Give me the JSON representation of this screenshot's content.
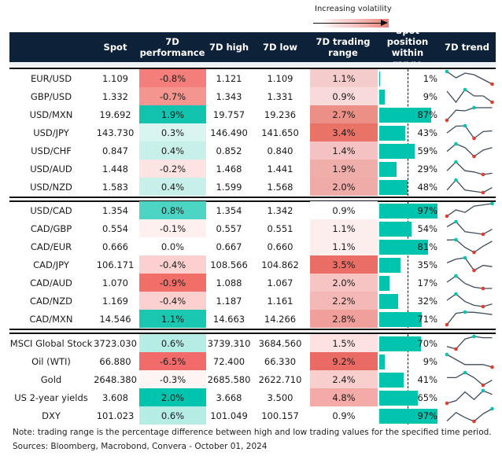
{
  "legend": {
    "label": "Increasing volatility"
  },
  "columns": [
    "",
    "Spot",
    "7D performance",
    "7D high",
    "7D low",
    "7D trading range",
    "Spot position within range",
    "7D trend"
  ],
  "colors": {
    "header": "#0d2138",
    "teal": "#00c4ae",
    "sparkline": "#3d4b5a",
    "high_marker": "#00c4ae",
    "low_marker": "#e03c31"
  },
  "chart_data": {
    "type": "table",
    "groups": [
      [
        {
          "name": "EUR/USD",
          "spot": "1.109",
          "perf": "-0.8%",
          "perf_color": "#f47f7a",
          "high": "1.121",
          "low": "1.109",
          "range": "1.1%",
          "range_color": "#f4cccc",
          "pos": 1,
          "pos_label": "1%",
          "trend": [
            10,
            6,
            9,
            8,
            5,
            2
          ]
        },
        {
          "name": "GBP/USD",
          "spot": "1.332",
          "perf": "-0.7%",
          "perf_color": "#f59590",
          "high": "1.343",
          "low": "1.331",
          "range": "0.9%",
          "range_color": "#f8dada",
          "pos": 9,
          "pos_label": "9%",
          "trend": [
            9,
            2,
            10,
            6,
            6,
            2
          ]
        },
        {
          "name": "USD/MXN",
          "spot": "19.692",
          "perf": "1.9%",
          "perf_color": "#12c4ae",
          "high": "19.757",
          "low": "19.236",
          "range": "2.7%",
          "range_color": "#ec8f87",
          "pos": 87,
          "pos_label": "87%",
          "trend": [
            0,
            8,
            7.5,
            10,
            10,
            10
          ]
        },
        {
          "name": "USD/JPY",
          "spot": "143.730",
          "perf": "0.3%",
          "perf_color": "#d9f5f1",
          "high": "146.490",
          "low": "141.650",
          "range": "3.4%",
          "range_color": "#e97366",
          "pos": 43,
          "pos_label": "43%",
          "trend": [
            4,
            9,
            9.3,
            0,
            5,
            5.5
          ]
        },
        {
          "name": "USD/CHF",
          "spot": "0.847",
          "perf": "0.4%",
          "perf_color": "#c8f0ea",
          "high": "0.852",
          "low": "0.840",
          "range": "1.4%",
          "range_color": "#f4c2c2",
          "pos": 59,
          "pos_label": "59%",
          "trend": [
            4,
            10,
            7,
            0,
            5,
            7
          ]
        },
        {
          "name": "USD/AUD",
          "spot": "1.448",
          "perf": "-0.2%",
          "perf_color": "#fde3e2",
          "high": "1.468",
          "low": "1.441",
          "range": "1.9%",
          "range_color": "#f0aeab",
          "pos": 29,
          "pos_label": "29%",
          "trend": [
            3,
            10,
            3,
            2,
            0,
            1
          ]
        },
        {
          "name": "USD/NZD",
          "spot": "1.583",
          "perf": "0.4%",
          "perf_color": "#c8f0ea",
          "high": "1.599",
          "low": "1.568",
          "range": "2.0%",
          "range_color": "#efaba8",
          "pos": 48,
          "pos_label": "48%",
          "trend": [
            2,
            10,
            2,
            1,
            0,
            4
          ]
        }
      ],
      [
        {
          "name": "USD/CAD",
          "spot": "1.354",
          "perf": "0.8%",
          "perf_color": "#4dd5c4",
          "high": "1.354",
          "low": "1.342",
          "range": "0.9%",
          "range_color": "#ffffff",
          "pos": 97,
          "pos_label": "97%",
          "trend": [
            0,
            5,
            3,
            8,
            9,
            10
          ]
        },
        {
          "name": "CAD/GBP",
          "spot": "0.554",
          "perf": "-0.1%",
          "perf_color": "#fdf0ef",
          "high": "0.557",
          "low": "0.551",
          "range": "1.1%",
          "range_color": "#fdeeee",
          "pos": 54,
          "pos_label": "54%",
          "trend": [
            6,
            10,
            2,
            1,
            0,
            4
          ]
        },
        {
          "name": "CAD/EUR",
          "spot": "0.666",
          "perf": "0.0%",
          "perf_color": "#ffffff",
          "high": "0.667",
          "low": "0.660",
          "range": "1.1%",
          "range_color": "#fdeeee",
          "pos": 81,
          "pos_label": "81%",
          "trend": [
            10,
            10.2,
            4,
            0,
            5,
            9
          ]
        },
        {
          "name": "CAD/JPY",
          "spot": "106.171",
          "perf": "-0.4%",
          "perf_color": "#fcd0ce",
          "high": "108.566",
          "low": "104.862",
          "range": "3.5%",
          "range_color": "#eb6e66",
          "pos": 35,
          "pos_label": "35%",
          "trend": [
            6,
            9,
            10,
            0,
            4,
            3
          ]
        },
        {
          "name": "CAD/AUD",
          "spot": "1.070",
          "perf": "-0.9%",
          "perf_color": "#f26e69",
          "high": "1.088",
          "low": "1.067",
          "range": "2.0%",
          "range_color": "#f6c4c2",
          "pos": 17,
          "pos_label": "17%",
          "trend": [
            5,
            10,
            4,
            1,
            0,
            0.1
          ]
        },
        {
          "name": "CAD/NZD",
          "spot": "1.169",
          "perf": "-0.4%",
          "perf_color": "#fcd0ce",
          "high": "1.187",
          "low": "1.161",
          "range": "2.2%",
          "range_color": "#f4b9b6",
          "pos": 32,
          "pos_label": "32%",
          "trend": [
            5,
            10,
            4,
            1,
            0,
            2
          ]
        },
        {
          "name": "CAD/MXN",
          "spot": "14.546",
          "perf": "1.1%",
          "perf_color": "#1ac8b2",
          "high": "14.663",
          "low": "14.266",
          "range": "2.8%",
          "range_color": "#f19f9a",
          "pos": 71,
          "pos_label": "71%",
          "trend": [
            0,
            9,
            10,
            9.8,
            9,
            8
          ]
        }
      ],
      [
        {
          "name": "MSCI Global Stock",
          "spot": "3723.030",
          "perf": "0.6%",
          "perf_color": "#b5ede5",
          "high": "3739.310",
          "low": "3684.560",
          "range": "1.5%",
          "range_color": "#fde2e1",
          "pos": 70,
          "pos_label": "70%",
          "trend": [
            2,
            0,
            8,
            10,
            9,
            9
          ]
        },
        {
          "name": "Oil (WTI)",
          "spot": "66.880",
          "perf": "-6.5%",
          "perf_color": "#f26b6b",
          "high": "72.400",
          "low": "66.330",
          "range": "9.2%",
          "range_color": "#ea6a65",
          "pos": 9,
          "pos_label": "9%",
          "trend": [
            10,
            6,
            2,
            2,
            2,
            0
          ]
        },
        {
          "name": "Gold",
          "spot": "2648.380",
          "perf": "-0.3%",
          "perf_color": "#fdf5f4",
          "high": "2685.580",
          "low": "2622.710",
          "range": "2.4%",
          "range_color": "#f9cfcd",
          "pos": 41,
          "pos_label": "41%",
          "trend": [
            6,
            6,
            10,
            6,
            0,
            4
          ]
        },
        {
          "name": "US 2-year yields",
          "spot": "3.608",
          "perf": "2.0%",
          "perf_color": "#00c4ae",
          "high": "3.668",
          "low": "3.500",
          "range": "4.8%",
          "range_color": "#f4aaa6",
          "pos": 65,
          "pos_label": "65%",
          "trend": [
            0,
            2,
            9,
            3,
            10,
            7
          ]
        },
        {
          "name": "DXY",
          "spot": "101.023",
          "perf": "0.6%",
          "perf_color": "#b5ede5",
          "high": "101.049",
          "low": "100.157",
          "range": "0.9%",
          "range_color": "#ffffff",
          "pos": 97,
          "pos_label": "97%",
          "trend": [
            0.2,
            7,
            3,
            0,
            6,
            10
          ]
        }
      ]
    ]
  },
  "notes": {
    "note": "Note: trading range is the percentage difference between high and low trading values for the specified time period.",
    "sources": "Sources: Bloomberg, Macrobond, Convera - October 01, 2024"
  }
}
